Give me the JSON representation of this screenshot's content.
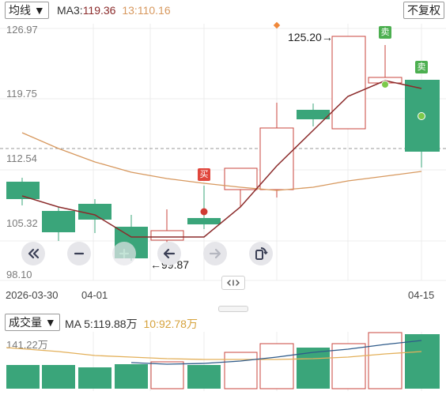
{
  "header": {
    "indicator_select": "均线 ▼",
    "ma3_label": "MA3:",
    "ma3_value": "119.36",
    "ma13_label": "13:",
    "ma13_value": "110.16",
    "adjust_button": "不复权"
  },
  "price_axis": [
    "126.97",
    "119.75",
    "112.54",
    "105.32",
    "98.10"
  ],
  "date_axis": [
    "2026-03-30",
    "04-01",
    "04-15"
  ],
  "annotations": {
    "high_label": "125.20→",
    "low_label": "←99.87",
    "buy_tag": "买",
    "sell_tag_1": "卖",
    "sell_tag_2": "卖"
  },
  "volume_header": {
    "indicator_select": "成交量 ▼",
    "ma5_label": "MA 5:",
    "ma5_value": "119.88万",
    "ma10_label": "10:",
    "ma10_value": "92.78万"
  },
  "volume_axis": [
    "141.22万"
  ],
  "colors": {
    "up": "#c8453e",
    "down": "#3aa57a",
    "ma3": "#8b2b2b",
    "ma13": "#d7985e",
    "vol_ma5": "#2f5b8a",
    "vol_ma10": "#e3b05a",
    "tag_sell": "#4caf50",
    "tag_buy": "#e0463c"
  },
  "toolbar": {
    "icons": [
      "double-left-icon",
      "minus-icon",
      "plus-icon",
      "arrow-left-icon",
      "arrow-right-icon",
      "rotate-screen-icon"
    ],
    "expand_icon": "expand-horizontal-icon"
  }
}
